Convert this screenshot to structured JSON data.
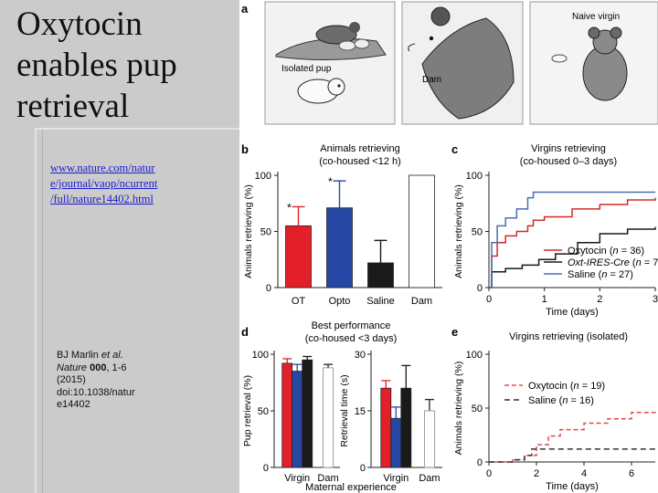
{
  "slide": {
    "title_lines": [
      "Oxytocin",
      "enables pup",
      "retrieval"
    ],
    "link_lines": [
      "www.nature.com/natur",
      "e/journal/vaop/ncurrent",
      "/full/nature14402.html"
    ],
    "citation": {
      "line1": "BJ Marlin ",
      "line1_em": "et al.",
      "journal": "Nature ",
      "volume": "000",
      "pages": ", 1-6",
      "year": "(2015)",
      "doi1": "doi:10.1038/natur",
      "doi2": "e14402"
    }
  },
  "panel_a": {
    "letter": "a",
    "labels": {
      "isolated": "Isolated pup",
      "dam": "Dam",
      "naive": "Naive virgin"
    }
  },
  "chart_data": [
    {
      "id": "b",
      "type": "bar",
      "title": "Animals retrieving",
      "subtitle": "(co-housed <12 h)",
      "ylabel": "Animals retrieving (%)",
      "ylim": [
        0,
        100
      ],
      "yticks": [
        0,
        50,
        100
      ],
      "categories": [
        "OT",
        "Opto",
        "Saline",
        "Dam"
      ],
      "values": [
        55,
        71,
        22,
        100
      ],
      "errors": [
        17,
        24,
        20,
        0
      ],
      "colors": [
        "#e3202a",
        "#2747a5",
        "#1a1a1a",
        "#ffffff"
      ],
      "annotations": [
        "*",
        "*",
        "",
        ""
      ]
    },
    {
      "id": "c",
      "type": "line",
      "title": "Virgins retrieving",
      "subtitle": "(co-housed 0–3 days)",
      "ylabel": "Animals retrieving (%)",
      "xlabel": "Time (days)",
      "xlim": [
        0,
        3
      ],
      "ylim": [
        0,
        100
      ],
      "xticks": [
        0,
        1,
        2,
        3
      ],
      "yticks": [
        0,
        50,
        100
      ],
      "series": [
        {
          "name": "Oxytocin",
          "n": "36",
          "color": "#d42a2a",
          "x": [
            0,
            0.05,
            0.15,
            0.3,
            0.5,
            0.7,
            0.8,
            1.0,
            1.5,
            2.0,
            2.5,
            3.0
          ],
          "y": [
            0,
            28,
            40,
            46,
            50,
            55,
            60,
            63,
            70,
            74,
            78,
            80
          ]
        },
        {
          "name": "Oxt-IRES-Cre",
          "n": "7",
          "color": "#1a1a1a",
          "x": [
            0,
            0.05,
            0.3,
            0.6,
            0.9,
            1.2,
            1.6,
            2.0,
            2.5,
            3.0
          ],
          "y": [
            0,
            14,
            17,
            20,
            25,
            30,
            40,
            48,
            52,
            54
          ]
        },
        {
          "name": "Saline",
          "n": "27",
          "color": "#4b6fb0",
          "x": [
            0,
            0.05,
            0.15,
            0.3,
            0.5,
            0.7,
            0.8,
            1.5,
            2.5,
            3.0
          ],
          "y": [
            0,
            40,
            55,
            62,
            70,
            80,
            85,
            85,
            85,
            85
          ]
        }
      ]
    },
    {
      "id": "d",
      "type": "bar",
      "title": "Best performance",
      "subtitle": "(co-housed <3 days)",
      "xlabel": "Maternal experience",
      "subplots": [
        {
          "ylabel": "Pup retrieval (%)",
          "ylim": [
            0,
            100
          ],
          "yticks": [
            0,
            50,
            100
          ],
          "groups": [
            {
              "label": "Virgin",
              "values": [
                92,
                85,
                95
              ],
              "errors": [
                4,
                6,
                3
              ],
              "colors": [
                "#e3202a",
                "#2747a5",
                "#1a1a1a"
              ]
            },
            {
              "label": "Dam",
              "values": [
                88
              ],
              "errors": [
                3
              ],
              "colors": [
                "#ffffff"
              ]
            }
          ]
        },
        {
          "ylabel": "Retrieval time (s)",
          "ylim": [
            0,
            30
          ],
          "yticks": [
            0,
            15,
            30
          ],
          "groups": [
            {
              "label": "Virgin",
              "values": [
                21,
                13,
                21
              ],
              "errors": [
                2,
                3,
                6
              ],
              "colors": [
                "#e3202a",
                "#2747a5",
                "#1a1a1a"
              ]
            },
            {
              "label": "Dam",
              "values": [
                15
              ],
              "errors": [
                3
              ],
              "colors": [
                "#ffffff"
              ]
            }
          ]
        }
      ]
    },
    {
      "id": "e",
      "type": "line",
      "title": "Virgins retrieving (isolated)",
      "ylabel": "Animals retrieving (%)",
      "xlabel": "Time (days)",
      "xlim": [
        0,
        7
      ],
      "ylim": [
        0,
        100
      ],
      "xticks": [
        0,
        2,
        4,
        6
      ],
      "yticks": [
        0,
        50,
        100
      ],
      "series": [
        {
          "name": "Oxytocin",
          "n": "19",
          "color": "#e34a4a",
          "dash": "5,3",
          "x": [
            0,
            1,
            1.5,
            2,
            2.5,
            3,
            4,
            5,
            6,
            7
          ],
          "y": [
            0,
            2,
            6,
            16,
            24,
            30,
            36,
            40,
            46,
            48
          ]
        },
        {
          "name": "Saline",
          "n": "16",
          "color": "#333333",
          "dash": "6,4",
          "x": [
            0,
            1,
            1.5,
            1.8,
            3,
            5,
            7
          ],
          "y": [
            0,
            2,
            6,
            12,
            12,
            12,
            12
          ]
        }
      ]
    }
  ]
}
